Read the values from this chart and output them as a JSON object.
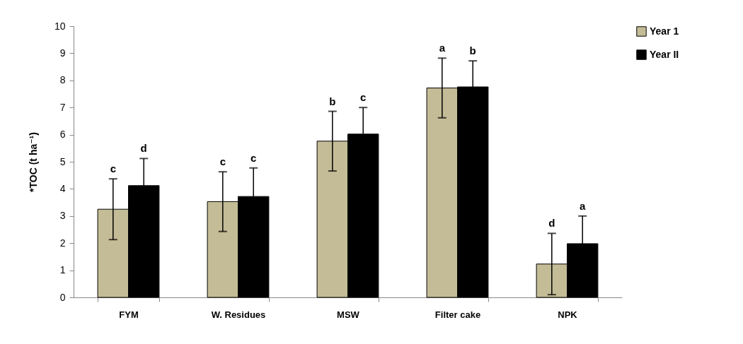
{
  "chart_data": {
    "type": "bar",
    "ylabel": "*TOC (t ha⁻¹)",
    "categories": [
      "FYM",
      "W. Residues",
      "MSW",
      "Filter cake",
      "NPK"
    ],
    "series": [
      {
        "name": "Year 1",
        "color": "#c4bc96",
        "values": [
          3.25,
          3.53,
          5.76,
          7.72,
          1.23
        ],
        "errors": [
          1.12,
          1.1,
          1.1,
          1.1,
          1.13
        ]
      },
      {
        "name": "Year II",
        "color": "#000000",
        "values": [
          4.12,
          3.72,
          6.02,
          7.76,
          1.98
        ],
        "errors": [
          [
            4.12,
            5.12
          ],
          [
            3.72,
            4.77
          ],
          [
            6.02,
            7.0
          ],
          [
            7.76,
            8.72
          ],
          [
            1.98,
            3.0
          ]
        ]
      }
    ],
    "ylim": [
      0,
      10
    ],
    "yticks": [
      0,
      1,
      2,
      3,
      4,
      5,
      6,
      7,
      8,
      9,
      10
    ],
    "grid": false,
    "legend": "right",
    "annotations": [
      "c",
      "d",
      "c",
      "c",
      "b",
      "c",
      "a",
      "b",
      "d",
      "a"
    ]
  }
}
